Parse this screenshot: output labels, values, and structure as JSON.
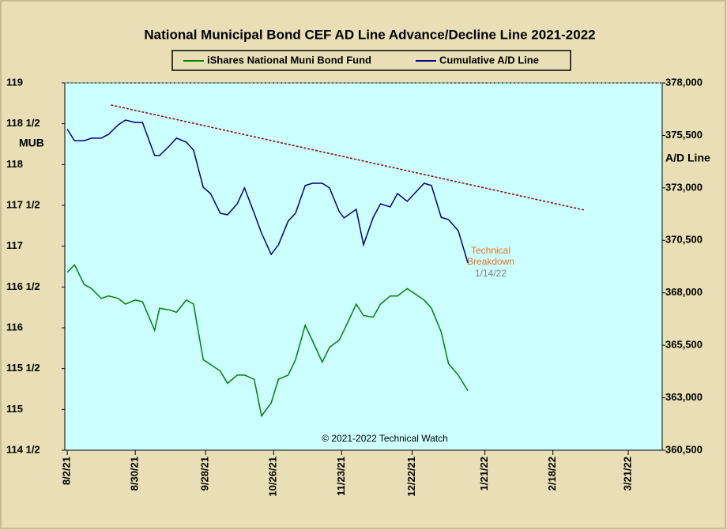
{
  "chart_data": {
    "type": "line",
    "title": "National Municipal Bond CEF AD Line Advance/Decline Line 2021-2022",
    "y_label": "MUB",
    "y2_label": "A/D Line",
    "copyright": "© 2021-2022 Technical Watch",
    "annotation": [
      "Technical",
      "Breakdown",
      "1/14/22"
    ],
    "legend": "top",
    "x": [
      "8/2/21",
      "8/5/21",
      "8/9/21",
      "8/12/21",
      "8/16/21",
      "8/19/21",
      "8/23/21",
      "8/26/21",
      "8/30/21",
      "9/2/21",
      "9/7/21",
      "9/9/21",
      "9/13/21",
      "9/16/21",
      "9/20/21",
      "9/23/21",
      "9/27/21",
      "9/30/21",
      "10/4/21",
      "10/7/21",
      "10/11/21",
      "10/14/21",
      "10/18/21",
      "10/21/21",
      "10/25/21",
      "10/28/21",
      "11/1/21",
      "11/4/21",
      "11/8/21",
      "11/11/21",
      "11/15/21",
      "11/18/21",
      "11/22/21",
      "11/24/21",
      "11/29/21",
      "12/2/21",
      "12/6/21",
      "12/9/21",
      "12/13/21",
      "12/16/21",
      "12/20/21",
      "12/23/21",
      "12/27/21",
      "12/30/21",
      "1/3/22",
      "1/6/22",
      "1/10/22",
      "1/14/22"
    ],
    "series": [
      {
        "name": "iShares National Muni Bond Fund",
        "color": "#008000",
        "axis": "y",
        "values": [
          116.68,
          116.77,
          116.53,
          116.48,
          116.36,
          116.39,
          116.36,
          116.29,
          116.34,
          116.32,
          115.97,
          116.24,
          116.22,
          116.19,
          116.34,
          116.29,
          115.61,
          115.55,
          115.47,
          115.32,
          115.42,
          115.42,
          115.37,
          114.92,
          115.08,
          115.37,
          115.42,
          115.61,
          116.03,
          115.84,
          115.58,
          115.76,
          115.85,
          115.97,
          116.29,
          116.15,
          116.13,
          116.29,
          116.39,
          116.39,
          116.48,
          116.42,
          116.34,
          116.24,
          115.95,
          115.56,
          115.42,
          115.23
        ]
      },
      {
        "name": "Cumulative A/D Line",
        "color": "#000080",
        "axis": "y2",
        "values": [
          375800,
          375250,
          375250,
          375370,
          375370,
          375550,
          376000,
          376230,
          376120,
          376120,
          374540,
          374540,
          374990,
          375370,
          375180,
          374800,
          373030,
          372730,
          371790,
          371720,
          372240,
          373000,
          371790,
          370850,
          369830,
          370290,
          371420,
          371790,
          373110,
          373220,
          373220,
          373000,
          371870,
          371570,
          371980,
          370290,
          371600,
          372240,
          372090,
          372730,
          372360,
          372730,
          373220,
          373110,
          371600,
          371490,
          370960,
          369420
        ]
      }
    ],
    "trendline": {
      "color": "#800000",
      "axis": "y2",
      "x": [
        "8/20/21",
        "3/3/22"
      ],
      "values": [
        376950,
        371940
      ]
    },
    "xlim": [
      "8/1/21",
      "4/4/22"
    ],
    "xticks": [
      "8/2/21",
      "8/30/21",
      "9/28/21",
      "10/26/21",
      "11/23/21",
      "12/22/21",
      "1/21/22",
      "2/18/22",
      "3/21/22"
    ],
    "ylim": [
      114.5,
      119
    ],
    "yticks": [
      {
        "value": 114.5,
        "label": "114 1/2"
      },
      115,
      {
        "value": 115.5,
        "label": "115 1/2"
      },
      116,
      {
        "value": 116.5,
        "label": "116 1/2"
      },
      117,
      {
        "value": 117.5,
        "label": "117 1/2"
      },
      118,
      {
        "value": 118.5,
        "label": "118 1/2"
      },
      119
    ],
    "y2lim": [
      360500,
      378000
    ],
    "y2ticks": [
      {
        "value": 360500,
        "label": "360,500"
      },
      {
        "value": 363000,
        "label": "363,000"
      },
      {
        "value": 365500,
        "label": "365,500"
      },
      {
        "value": 368000,
        "label": "368,000"
      },
      {
        "value": 370500,
        "label": "370,500"
      },
      {
        "value": 373000,
        "label": "373,000"
      },
      {
        "value": 375500,
        "label": "375,500"
      },
      {
        "value": 378000,
        "label": "378,000"
      }
    ]
  }
}
